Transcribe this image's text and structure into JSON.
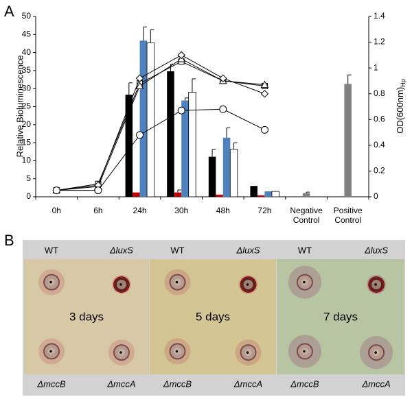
{
  "panel_labels": [
    "A",
    "B"
  ],
  "chart_data": {
    "type": "bar",
    "ylabel": "Relative Bioluminescence",
    "y2label": "OD(600nm)",
    "y2label_sub": "Hp",
    "categories": [
      "0h",
      "6h",
      "24h",
      "30h",
      "48h",
      "72h",
      "Negative Control",
      "Positive Control"
    ],
    "ylim": [
      0,
      50
    ],
    "yticks": [
      0,
      5,
      10,
      15,
      20,
      25,
      30,
      35,
      40,
      45,
      50
    ],
    "y2lim": [
      0,
      1.4
    ],
    "y2ticks": [
      0,
      0.2,
      0.4,
      0.6,
      0.8,
      1,
      1.2,
      1.4
    ],
    "grid": false,
    "series": [
      {
        "type": "bar",
        "color": "#000000",
        "values": [
          null,
          null,
          28.3,
          34.8,
          11.1,
          3.0,
          null,
          null
        ],
        "errors": [
          null,
          null,
          3.3,
          2.0,
          2.0,
          null,
          null,
          null
        ]
      },
      {
        "type": "bar",
        "color": "#c00000",
        "values": [
          null,
          null,
          1.2,
          1.2,
          0.6,
          0.4,
          null,
          null
        ],
        "errors": [
          null,
          null,
          null,
          0.7,
          null,
          null,
          null,
          null
        ]
      },
      {
        "type": "bar",
        "color": "#4f81bd",
        "values": [
          null,
          null,
          43.3,
          26.7,
          16.4,
          1.5,
          null,
          null
        ],
        "errors": [
          null,
          null,
          3.8,
          0.7,
          2.7,
          null,
          null,
          null
        ]
      },
      {
        "type": "bar",
        "color": "#ffffff",
        "values": [
          null,
          null,
          42.7,
          29.0,
          13.2,
          1.5,
          null,
          null
        ],
        "errors": [
          null,
          null,
          3.6,
          3.7,
          1.8,
          null,
          null,
          null
        ]
      },
      {
        "type": "bar",
        "color": "#808080",
        "values": [
          null,
          null,
          null,
          null,
          null,
          null,
          1.0,
          31.3
        ],
        "errors": [
          null,
          null,
          null,
          null,
          null,
          null,
          0.3,
          2.5
        ]
      },
      {
        "type": "line",
        "axis": "y2",
        "color": "#000000",
        "marker": "square",
        "values": [
          0.05,
          0.1,
          0.88,
          1.05,
          0.9,
          0.86,
          null,
          null
        ]
      },
      {
        "type": "line",
        "axis": "y2",
        "color": "#000000",
        "marker": "triangle",
        "values": [
          0.05,
          0.08,
          0.86,
          1.07,
          0.9,
          0.87,
          null,
          null
        ]
      },
      {
        "type": "line",
        "axis": "y2",
        "color": "#000000",
        "marker": "diamond",
        "values": [
          0.05,
          0.09,
          0.92,
          1.1,
          0.92,
          0.8,
          null,
          null
        ]
      },
      {
        "type": "line",
        "axis": "y2",
        "color": "#000000",
        "marker": "circle",
        "values": [
          0.05,
          0.05,
          0.48,
          0.67,
          0.68,
          0.52,
          null,
          null
        ]
      }
    ]
  },
  "plates": [
    {
      "top_left": "WT",
      "top_right": "ΔluxS",
      "bottom_left": "ΔmccB",
      "bottom_right": "ΔmccA",
      "day": "3 days"
    },
    {
      "top_left": "WT",
      "top_right": "ΔluxS",
      "bottom_left": "ΔmccB",
      "bottom_right": "ΔmccA",
      "day": "5 days"
    },
    {
      "top_left": "WT",
      "top_right": "ΔluxS",
      "bottom_left": "ΔmccB",
      "bottom_right": "ΔmccA",
      "day": "7 days"
    }
  ]
}
